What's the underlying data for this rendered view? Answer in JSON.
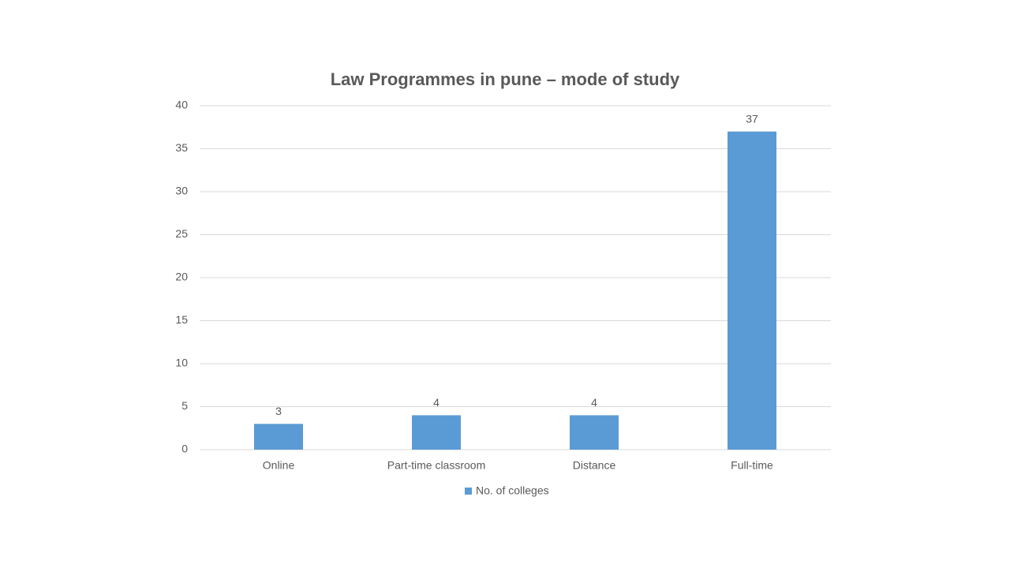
{
  "chart_data": {
    "type": "bar",
    "title": "Law Programmes in pune – mode of study",
    "categories": [
      "Online",
      "Part-time classroom",
      "Distance",
      "Full-time"
    ],
    "series": [
      {
        "name": "No. of colleges",
        "color": "#5b9bd5",
        "values": [
          3,
          4,
          4,
          37
        ]
      }
    ],
    "ylim": [
      0,
      40
    ],
    "yticks": [
      0,
      5,
      10,
      15,
      20,
      25,
      30,
      35,
      40
    ],
    "grid": true,
    "legend": "bottom"
  }
}
